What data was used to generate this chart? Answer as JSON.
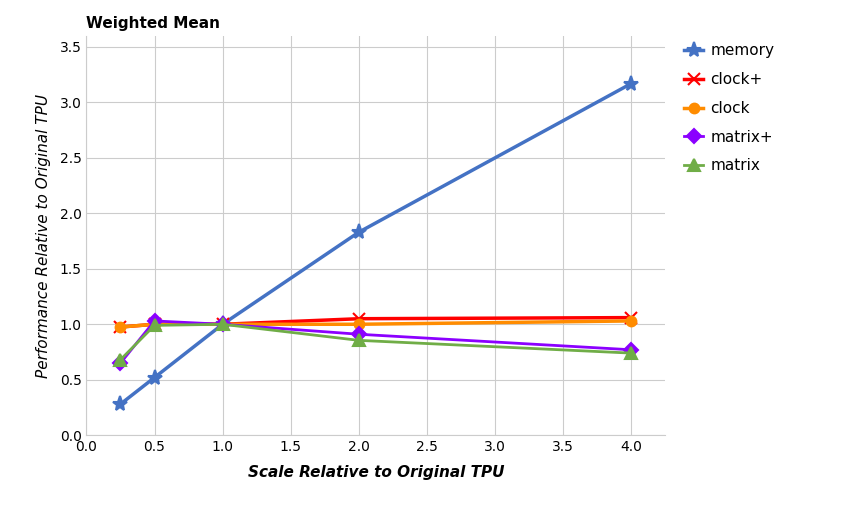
{
  "title": "Weighted Mean",
  "xlabel": "Scale Relative to Original TPU",
  "ylabel": "Performance Relative to Original TPU",
  "xlim": [
    0.0,
    4.25
  ],
  "ylim": [
    0.0,
    3.6
  ],
  "xticks": [
    0.0,
    0.5,
    1.0,
    1.5,
    2.0,
    2.5,
    3.0,
    3.5,
    4.0
  ],
  "yticks": [
    0.0,
    0.5,
    1.0,
    1.5,
    2.0,
    2.5,
    3.0,
    3.5
  ],
  "series": [
    {
      "label": "memory",
      "color": "#4472C4",
      "marker": "*",
      "markersize": 11,
      "linewidth": 2.5,
      "x": [
        0.25,
        0.5,
        1.0,
        2.0,
        4.0
      ],
      "y": [
        0.28,
        0.52,
        1.0,
        1.83,
        3.17
      ]
    },
    {
      "label": "clock+",
      "color": "#FF0000",
      "marker": "x",
      "markersize": 8,
      "linewidth": 2.5,
      "x": [
        0.25,
        0.5,
        1.0,
        2.0,
        4.0
      ],
      "y": [
        0.975,
        1.0,
        1.0,
        1.05,
        1.06
      ]
    },
    {
      "label": "clock",
      "color": "#FF8C00",
      "marker": "o",
      "markersize": 7,
      "linewidth": 2.5,
      "x": [
        0.25,
        0.5,
        1.0,
        2.0,
        4.0
      ],
      "y": [
        0.975,
        1.0,
        1.0,
        1.0,
        1.03
      ]
    },
    {
      "label": "matrix+",
      "color": "#8B00FF",
      "marker": "D",
      "markersize": 7,
      "linewidth": 2.0,
      "x": [
        0.25,
        0.5,
        1.0,
        2.0,
        4.0
      ],
      "y": [
        0.65,
        1.03,
        1.0,
        0.91,
        0.77
      ]
    },
    {
      "label": "matrix",
      "color": "#70AD47",
      "marker": "^",
      "markersize": 8,
      "linewidth": 2.0,
      "x": [
        0.25,
        0.5,
        1.0,
        2.0,
        4.0
      ],
      "y": [
        0.68,
        0.99,
        1.0,
        0.855,
        0.74
      ]
    }
  ],
  "background_color": "#ffffff",
  "grid_color": "#cccccc",
  "title_fontsize": 11,
  "axis_label_fontsize": 11,
  "tick_fontsize": 10,
  "legend_fontsize": 11
}
